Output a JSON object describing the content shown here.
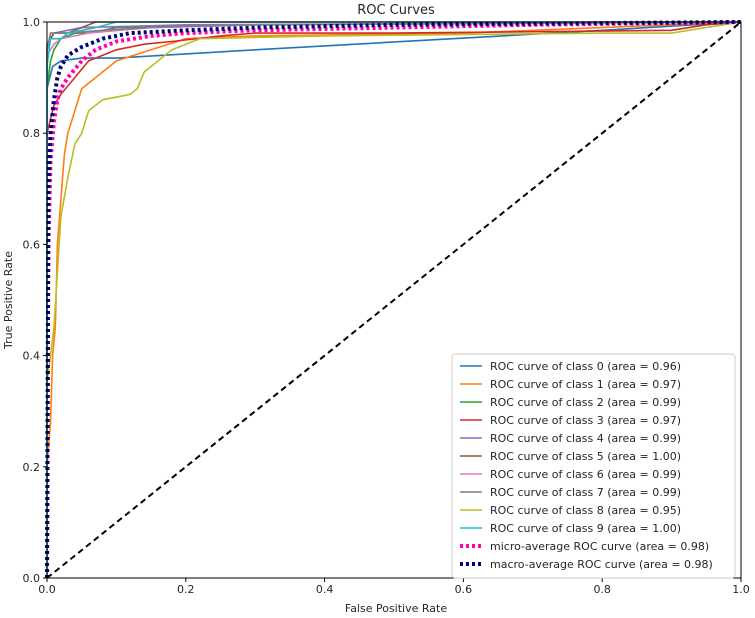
{
  "chart_data": {
    "type": "line",
    "title": "ROC Curves",
    "xlabel": "False Positive Rate",
    "ylabel": "True Positive Rate",
    "xlim": [
      0.0,
      1.0
    ],
    "ylim": [
      0.0,
      1.0
    ],
    "xticks": [
      "0.0",
      "0.2",
      "0.4",
      "0.6",
      "0.8",
      "1.0"
    ],
    "yticks": [
      "0.0",
      "0.2",
      "0.4",
      "0.6",
      "0.8",
      "1.0"
    ],
    "grid": false,
    "legend_position": "lower-right",
    "series": [
      {
        "name": "ROC curve of class 0 (area = 0.96)",
        "color": "#1f77b4",
        "style": "solid",
        "points": [
          [
            0,
            0
          ],
          [
            0,
            0.88
          ],
          [
            0.008,
            0.92
          ],
          [
            0.02,
            0.93
          ],
          [
            0.05,
            0.935
          ],
          [
            0.1,
            0.935
          ],
          [
            0.3,
            0.95
          ],
          [
            0.8,
            0.985
          ],
          [
            1,
            1
          ]
        ]
      },
      {
        "name": "ROC curve of class 1 (area = 0.97)",
        "color": "#ff7f0e",
        "style": "solid",
        "points": [
          [
            0,
            0
          ],
          [
            0,
            0.2
          ],
          [
            0.005,
            0.28
          ],
          [
            0.008,
            0.4
          ],
          [
            0.012,
            0.45
          ],
          [
            0.015,
            0.6
          ],
          [
            0.02,
            0.68
          ],
          [
            0.025,
            0.76
          ],
          [
            0.03,
            0.8
          ],
          [
            0.04,
            0.84
          ],
          [
            0.05,
            0.88
          ],
          [
            0.07,
            0.9
          ],
          [
            0.1,
            0.93
          ],
          [
            0.15,
            0.95
          ],
          [
            0.2,
            0.97
          ],
          [
            0.3,
            0.975
          ],
          [
            0.6,
            0.98
          ],
          [
            1,
            1
          ]
        ]
      },
      {
        "name": "ROC curve of class 2 (area = 0.99)",
        "color": "#2ca02c",
        "style": "solid",
        "points": [
          [
            0,
            0
          ],
          [
            0,
            0.88
          ],
          [
            0.005,
            0.93
          ],
          [
            0.01,
            0.95
          ],
          [
            0.02,
            0.97
          ],
          [
            0.04,
            0.98
          ],
          [
            0.06,
            0.98
          ],
          [
            0.1,
            0.99
          ],
          [
            0.3,
            0.995
          ],
          [
            1,
            1
          ]
        ]
      },
      {
        "name": "ROC curve of class 3 (area = 0.97)",
        "color": "#d62728",
        "style": "solid",
        "points": [
          [
            0,
            0
          ],
          [
            0,
            0.8
          ],
          [
            0.01,
            0.85
          ],
          [
            0.02,
            0.87
          ],
          [
            0.04,
            0.9
          ],
          [
            0.06,
            0.93
          ],
          [
            0.08,
            0.94
          ],
          [
            0.1,
            0.95
          ],
          [
            0.14,
            0.96
          ],
          [
            0.18,
            0.965
          ],
          [
            0.25,
            0.975
          ],
          [
            0.3,
            0.98
          ],
          [
            0.5,
            0.98
          ],
          [
            0.9,
            0.985
          ],
          [
            0.95,
            0.995
          ],
          [
            1,
            1
          ]
        ]
      },
      {
        "name": "ROC curve of class 4 (area = 0.99)",
        "color": "#9467bd",
        "style": "solid",
        "points": [
          [
            0,
            0
          ],
          [
            0,
            0.95
          ],
          [
            0.005,
            0.97
          ],
          [
            0.01,
            0.98
          ],
          [
            0.05,
            0.99
          ],
          [
            0.2,
            0.995
          ],
          [
            1,
            1
          ]
        ]
      },
      {
        "name": "ROC curve of class 5 (area = 1.00)",
        "color": "#8c564b",
        "style": "solid",
        "points": [
          [
            0,
            0
          ],
          [
            0,
            0.96
          ],
          [
            0.01,
            0.98
          ],
          [
            0.03,
            0.98
          ],
          [
            0.07,
            1.0
          ],
          [
            1,
            1
          ]
        ]
      },
      {
        "name": "ROC curve of class 6 (area = 0.99)",
        "color": "#e377c2",
        "style": "solid",
        "points": [
          [
            0,
            0
          ],
          [
            0,
            0.94
          ],
          [
            0.01,
            0.96
          ],
          [
            0.02,
            0.97
          ],
          [
            0.06,
            0.98
          ],
          [
            0.15,
            0.99
          ],
          [
            0.3,
            0.995
          ],
          [
            1,
            1
          ]
        ]
      },
      {
        "name": "ROC curve of class 7 (area = 0.99)",
        "color": "#7f7f7f",
        "style": "solid",
        "points": [
          [
            0,
            0
          ],
          [
            0,
            0.95
          ],
          [
            0.005,
            0.98
          ],
          [
            0.03,
            0.98
          ],
          [
            0.08,
            0.985
          ],
          [
            0.15,
            0.99
          ],
          [
            0.3,
            0.995
          ],
          [
            1,
            1
          ]
        ]
      },
      {
        "name": "ROC curve of class 8 (area = 0.95)",
        "color": "#bcbd22",
        "style": "solid",
        "points": [
          [
            0,
            0
          ],
          [
            0,
            0.35
          ],
          [
            0.01,
            0.45
          ],
          [
            0.015,
            0.55
          ],
          [
            0.02,
            0.65
          ],
          [
            0.03,
            0.72
          ],
          [
            0.04,
            0.78
          ],
          [
            0.05,
            0.8
          ],
          [
            0.06,
            0.84
          ],
          [
            0.08,
            0.86
          ],
          [
            0.12,
            0.87
          ],
          [
            0.13,
            0.88
          ],
          [
            0.14,
            0.91
          ],
          [
            0.16,
            0.93
          ],
          [
            0.18,
            0.95
          ],
          [
            0.2,
            0.96
          ],
          [
            0.22,
            0.97
          ],
          [
            0.4,
            0.975
          ],
          [
            0.8,
            0.98
          ],
          [
            0.9,
            0.98
          ],
          [
            1,
            1
          ]
        ]
      },
      {
        "name": "ROC curve of class 9 (area = 1.00)",
        "color": "#17becf",
        "style": "solid",
        "points": [
          [
            0,
            0
          ],
          [
            0,
            0.92
          ],
          [
            0.005,
            0.97
          ],
          [
            0.02,
            0.97
          ],
          [
            0.03,
            0.98
          ],
          [
            0.07,
            0.99
          ],
          [
            0.1,
            1.0
          ],
          [
            1,
            1
          ]
        ]
      },
      {
        "name": "micro-average ROC curve (area = 0.98)",
        "color": "#ff00aa",
        "style": "dotted",
        "points": [
          [
            0,
            0
          ],
          [
            0.002,
            0.6
          ],
          [
            0.005,
            0.75
          ],
          [
            0.01,
            0.82
          ],
          [
            0.015,
            0.86
          ],
          [
            0.02,
            0.88
          ],
          [
            0.03,
            0.9
          ],
          [
            0.05,
            0.93
          ],
          [
            0.07,
            0.95
          ],
          [
            0.1,
            0.965
          ],
          [
            0.15,
            0.975
          ],
          [
            0.2,
            0.98
          ],
          [
            0.3,
            0.985
          ],
          [
            0.5,
            0.99
          ],
          [
            0.7,
            0.995
          ],
          [
            0.9,
            0.998
          ],
          [
            1,
            1
          ]
        ]
      },
      {
        "name": "macro-average ROC curve (area = 0.98)",
        "color": "#000080",
        "style": "dotted",
        "points": [
          [
            0,
            0
          ],
          [
            0.002,
            0.7
          ],
          [
            0.005,
            0.8
          ],
          [
            0.01,
            0.86
          ],
          [
            0.015,
            0.9
          ],
          [
            0.02,
            0.92
          ],
          [
            0.03,
            0.94
          ],
          [
            0.05,
            0.955
          ],
          [
            0.08,
            0.97
          ],
          [
            0.12,
            0.98
          ],
          [
            0.2,
            0.985
          ],
          [
            0.3,
            0.99
          ],
          [
            0.5,
            0.995
          ],
          [
            0.8,
            0.998
          ],
          [
            1,
            1
          ]
        ]
      },
      {
        "name": "",
        "color": "#000000",
        "style": "dashed",
        "points": [
          [
            0,
            0
          ],
          [
            1,
            1
          ]
        ]
      }
    ]
  }
}
